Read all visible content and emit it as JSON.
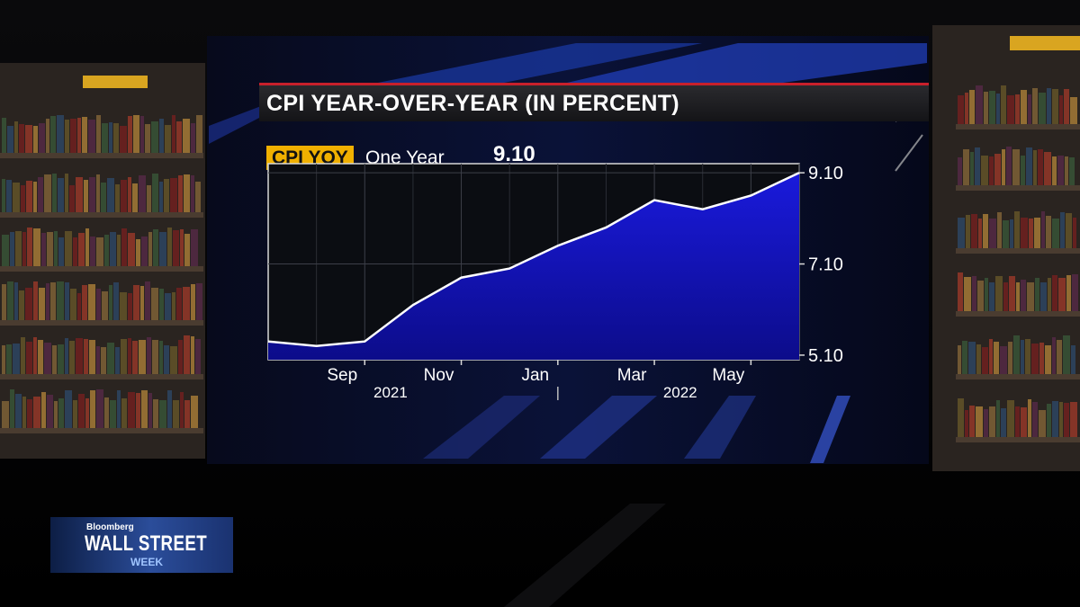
{
  "chart_data": {
    "type": "area",
    "title": "CPI YEAR-OVER-YEAR (IN PERCENT)",
    "ticker": "CPI YOY",
    "period": "One Year",
    "last_value_label": "9.10",
    "x": [
      "2021-07",
      "2021-08",
      "2021-09",
      "2021-10",
      "2021-11",
      "2021-12",
      "2022-01",
      "2022-02",
      "2022-03",
      "2022-04",
      "2022-05",
      "2022-06"
    ],
    "values": [
      5.4,
      5.3,
      5.4,
      6.2,
      6.8,
      7.0,
      7.5,
      7.9,
      8.5,
      8.3,
      8.6,
      9.1
    ],
    "ylim": [
      5.0,
      9.3
    ],
    "yticks": [
      5.1,
      7.1,
      9.1
    ],
    "ytick_labels": [
      "5.10",
      "7.10",
      "9.10"
    ],
    "xtick_labels": [
      {
        "month": "2021-09",
        "label": "Sep"
      },
      {
        "month": "2021-11",
        "label": "Nov"
      },
      {
        "month": "2022-01",
        "label": "Jan"
      },
      {
        "month": "2022-03",
        "label": "Mar"
      },
      {
        "month": "2022-05",
        "label": "May"
      }
    ],
    "year_labels": [
      {
        "month": "2021-10",
        "label": "2021"
      },
      {
        "month": "2022-04",
        "label": "2022"
      }
    ],
    "grid": true,
    "fill_color": "#1a1adc",
    "line_color": "#ffffff"
  },
  "branding": {
    "network": "Bloomberg",
    "show": "WALL STREET",
    "show_sub": "WEEK"
  }
}
